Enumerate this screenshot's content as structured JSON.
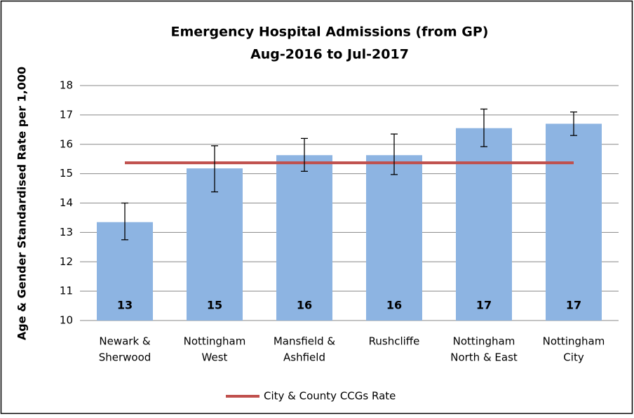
{
  "chart_data": {
    "type": "bar",
    "title": "Emergency Hospital Admissions (from GP)",
    "subtitle": "Aug-2016 to Jul-2017",
    "y_label": "Age & Gender Standardised Rate per 1,000",
    "categories": [
      [
        "Newark &",
        "Sherwood"
      ],
      [
        "Nottingham",
        "West"
      ],
      [
        "Mansfield &",
        "Ashfield"
      ],
      [
        "Rushcliffe"
      ],
      [
        "Nottingham",
        "North & East"
      ],
      [
        "Nottingham",
        "City"
      ]
    ],
    "values": [
      13.35,
      15.18,
      15.63,
      15.63,
      16.55,
      16.7
    ],
    "value_labels": [
      "13",
      "15",
      "16",
      "16",
      "17",
      "17"
    ],
    "ci_lower": [
      12.75,
      14.38,
      15.08,
      14.97,
      15.92,
      16.3
    ],
    "ci_upper": [
      14.0,
      15.95,
      16.2,
      16.35,
      17.2,
      17.1
    ],
    "color": "#8db4e2",
    "reference": {
      "name": "City & County CCGs Rate",
      "value": 15.37,
      "color": "#c0504d"
    },
    "ylim": [
      10,
      18
    ],
    "yticks": [
      10,
      11,
      12,
      13,
      14,
      15,
      16,
      17,
      18
    ],
    "grid": true,
    "legend": "bottom"
  }
}
